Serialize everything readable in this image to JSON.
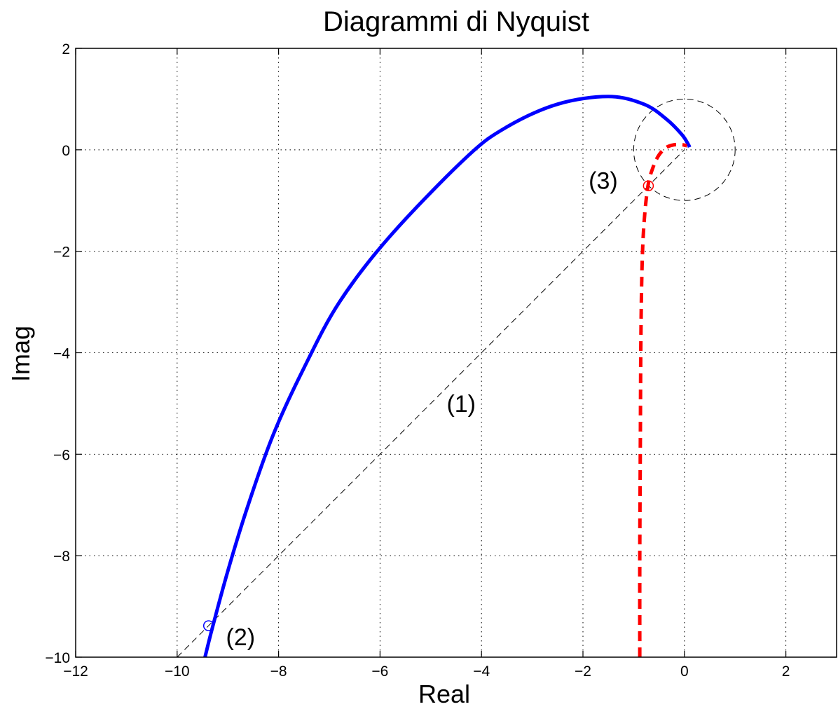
{
  "chart_data": {
    "type": "line",
    "title": "Diagrammi di Nyquist",
    "xlabel": "Real",
    "ylabel": "Imag",
    "xlim": [
      -12,
      3
    ],
    "ylim": [
      -10,
      2
    ],
    "xticks": [
      -12,
      -10,
      -8,
      -6,
      -4,
      -2,
      0,
      2
    ],
    "yticks": [
      -10,
      -8,
      -6,
      -4,
      -2,
      0,
      2
    ],
    "xtick_labels": [
      "−12",
      "−10",
      "−8",
      "−6",
      "−4",
      "−2",
      "0",
      "2"
    ],
    "ytick_labels": [
      "−10",
      "−8",
      "−6",
      "−4",
      "−2",
      "0",
      "2"
    ],
    "grid": true,
    "colors": {
      "series1": "#0000ff",
      "series2": "#ff0000",
      "reference": "#000000"
    },
    "series": [
      {
        "style": "solid",
        "x": [
          -9.45,
          -9.3,
          -9.0,
          -8.6,
          -8.1,
          -7.5,
          -6.8,
          -5.8,
          -4.3,
          -3.5,
          -2.5,
          -1.5,
          -0.8,
          -0.35,
          -0.05,
          0.08,
          0.1
        ],
        "y": [
          -10.0,
          -9.4,
          -8.3,
          -7.0,
          -5.6,
          -4.3,
          -3.0,
          -1.7,
          -0.15,
          0.45,
          0.9,
          1.05,
          0.9,
          0.6,
          0.3,
          0.1,
          0.05
        ]
      },
      {
        "style": "dashed",
        "x": [
          -0.88,
          -0.88,
          -0.87,
          -0.86,
          -0.84,
          -0.8,
          -0.72,
          -0.62,
          -0.5,
          -0.35,
          -0.2,
          -0.05,
          0.05
        ],
        "y": [
          -10.0,
          -8.0,
          -6.0,
          -4.0,
          -2.5,
          -1.5,
          -0.72,
          -0.35,
          -0.1,
          0.05,
          0.1,
          0.1,
          0.08
        ]
      }
    ],
    "reference_lines": [
      {
        "name": "(1)",
        "x": [
          -10,
          0
        ],
        "y": [
          -10,
          0
        ]
      }
    ],
    "unit_circle": {
      "center": [
        0,
        0
      ],
      "radius": 1
    },
    "markers": [
      {
        "label": "(2)",
        "x": -9.38,
        "y": -9.38,
        "color": "#0000ff"
      },
      {
        "label": "(3)",
        "x": -0.71,
        "y": -0.71,
        "color": "#ff0000"
      }
    ],
    "annotations": [
      {
        "text": "(1)",
        "x": -4.4,
        "y": -5.0
      },
      {
        "text": "(2)",
        "x": -8.75,
        "y": -9.6
      },
      {
        "text": "(3)",
        "x": -1.6,
        "y": -0.6
      }
    ]
  }
}
